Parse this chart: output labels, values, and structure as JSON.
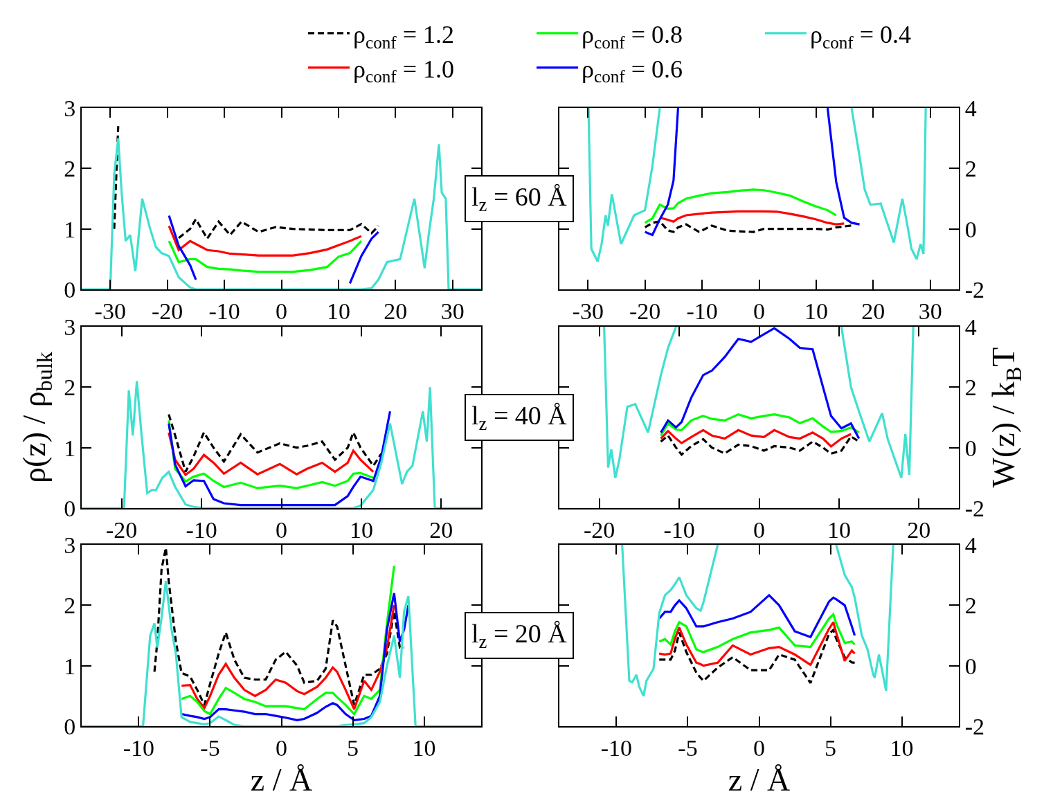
{
  "chart_data": [
    {
      "type": "line",
      "legend": "top",
      "annotations": [
        "l$_{z}$ = 60 Å"
      ],
      "xlim": [
        -35,
        35
      ],
      "xticks": [
        -30,
        -20,
        -10,
        0,
        10,
        20,
        30
      ],
      "ylim": [
        0,
        3
      ],
      "yticks": [
        0,
        1,
        2,
        3
      ],
      "x": [
        -35,
        -30,
        -29.3,
        -28.6,
        -28,
        -27.3,
        -26.5,
        -25.6,
        -24.4,
        -23,
        -22,
        -21,
        -19.7,
        -18,
        -16,
        -15,
        -13,
        -11,
        -9,
        -7,
        -4,
        -1,
        2,
        5,
        8,
        10,
        12,
        14,
        15.8,
        17,
        18.5,
        20.8,
        23.3,
        25.1,
        25.8,
        26.7,
        27.6,
        28.1,
        28.8,
        29.3,
        35
      ],
      "series": [
        {
          "name": "ρ$_{conf}$ = 1.2",
          "color": "#000000",
          "line_style": "dashed",
          "values": [
            null,
            null,
            1.0,
            2.7,
            null,
            null,
            null,
            null,
            null,
            null,
            null,
            null,
            null,
            0.85,
            1.0,
            1.16,
            0.84,
            1.12,
            0.9,
            1.12,
            0.95,
            1.03,
            1.0,
            0.99,
            0.98,
            0.98,
            0.98,
            1.08,
            0.93,
            1.05,
            null,
            null,
            null,
            null,
            null,
            null,
            null,
            null,
            null,
            null,
            null
          ]
        },
        {
          "name": "ρ$_{conf}$ = 1.0",
          "color": "#ff0000",
          "values": [
            null,
            null,
            null,
            null,
            null,
            null,
            null,
            null,
            null,
            null,
            null,
            null,
            1.05,
            0.65,
            0.8,
            0.75,
            0.65,
            0.63,
            0.59,
            0.58,
            0.56,
            0.56,
            0.56,
            0.6,
            0.66,
            0.73,
            0.8,
            0.88,
            null,
            null,
            null,
            null,
            null,
            null,
            null,
            null,
            null,
            null,
            null,
            null,
            null
          ]
        },
        {
          "name": "ρ$_{conf}$ = 0.8",
          "color": "#00ff00",
          "values": [
            null,
            null,
            null,
            null,
            null,
            null,
            null,
            null,
            null,
            null,
            null,
            null,
            0.8,
            0.45,
            0.5,
            0.5,
            0.37,
            0.34,
            0.33,
            0.31,
            0.29,
            0.29,
            0.29,
            0.32,
            0.37,
            0.54,
            0.6,
            0.8,
            null,
            null,
            null,
            null,
            null,
            null,
            null,
            null,
            null,
            null,
            null,
            null,
            null
          ]
        },
        {
          "name": "ρ$_{conf}$ = 0.6",
          "color": "#0000ff",
          "values": [
            null,
            null,
            null,
            null,
            null,
            null,
            null,
            null,
            null,
            null,
            null,
            null,
            1.22,
            0.72,
            0.4,
            0.16,
            null,
            null,
            null,
            null,
            null,
            null,
            null,
            null,
            null,
            null,
            0.1,
            0.55,
            0.84,
            0.95,
            null,
            null,
            null,
            null,
            null,
            null,
            null,
            null,
            null,
            null,
            null
          ]
        },
        {
          "name": "ρ$_{conf}$ = 0.4",
          "color": "#40e0d0",
          "values": [
            0,
            0,
            1.9,
            2.5,
            1.6,
            0.8,
            0.9,
            0.3,
            1.5,
            1.0,
            0.7,
            0.6,
            0.55,
            0.2,
            0.03,
            0,
            0,
            0,
            0,
            0,
            0,
            0,
            0,
            0,
            0,
            0,
            0,
            0,
            0.02,
            0.16,
            0.45,
            0.5,
            1.5,
            0.35,
            0.9,
            1.5,
            2.4,
            1.6,
            1.5,
            0,
            0
          ]
        }
      ]
    },
    {
      "type": "line",
      "xlim": [
        -35,
        35
      ],
      "xticks": [
        -30,
        -20,
        -10,
        0,
        10,
        20,
        30
      ],
      "ylim": [
        -2,
        4
      ],
      "yticks": [
        -2,
        0,
        2,
        4
      ],
      "x": [
        -29.9,
        -29.4,
        -28.3,
        -27.6,
        -26.9,
        -26.5,
        -25.8,
        -24.2,
        -21.9,
        -20,
        -18.7,
        -17.4,
        -16,
        -15,
        -14.2,
        -12.8,
        -10.5,
        -8.3,
        -5.5,
        -3.7,
        -1,
        0.8,
        3.1,
        5.4,
        7.6,
        9.9,
        12,
        13.5,
        14.9,
        16.2,
        17.6,
        18.5,
        19.5,
        21.3,
        23.6,
        25.1,
        26,
        26.7,
        27.6,
        28.3,
        28.8,
        29.2
      ],
      "series": [
        {
          "color": "#000000",
          "line_style": "dashed",
          "values": [
            null,
            null,
            null,
            null,
            null,
            null,
            null,
            null,
            null,
            0.05,
            0.2,
            0.25,
            -0.05,
            -0.1,
            0.05,
            0.15,
            -0.1,
            0.11,
            -0.06,
            -0.08,
            -0.1,
            0,
            0,
            0,
            0,
            0,
            -0.02,
            0.05,
            0.08,
            0.11,
            null,
            null,
            null,
            null,
            null,
            null,
            null,
            null,
            null,
            null,
            null,
            null
          ]
        },
        {
          "color": "#ff0000",
          "values": [
            null,
            null,
            null,
            null,
            null,
            null,
            null,
            null,
            null,
            null,
            null,
            0.37,
            0.3,
            0.24,
            0.35,
            0.45,
            0.5,
            0.54,
            0.56,
            0.58,
            0.58,
            0.58,
            0.57,
            0.5,
            0.42,
            0.32,
            0.2,
            0.15,
            0.18,
            null,
            null,
            null,
            null,
            null,
            null,
            null,
            null,
            null,
            null,
            null,
            null,
            null
          ]
        },
        {
          "color": "#00ff00",
          "values": [
            null,
            null,
            null,
            null,
            null,
            null,
            null,
            null,
            null,
            0.2,
            0.35,
            0.8,
            0.67,
            0.68,
            0.85,
            1.0,
            1.1,
            1.18,
            1.22,
            1.26,
            1.3,
            1.28,
            1.2,
            1.1,
            0.92,
            0.75,
            0.62,
            0.45,
            null,
            null,
            null,
            null,
            null,
            null,
            null,
            null,
            null,
            null,
            null,
            null,
            null,
            null
          ]
        },
        {
          "color": "#0000ff",
          "values": [
            null,
            null,
            null,
            null,
            null,
            null,
            null,
            null,
            null,
            -0.1,
            -0.2,
            0.32,
            0.8,
            1.6,
            4,
            null,
            null,
            null,
            null,
            null,
            null,
            null,
            null,
            null,
            null,
            null,
            4,
            1.56,
            0.37,
            0.2,
            0.15,
            null,
            null,
            null,
            null,
            null,
            null,
            null,
            null,
            null,
            null,
            null
          ]
        },
        {
          "color": "#40e0d0",
          "values": [
            4,
            -0.66,
            -1.08,
            -0.5,
            0.45,
            0.1,
            1.15,
            -0.5,
            0.45,
            0.62,
            2.08,
            4,
            null,
            null,
            null,
            null,
            null,
            null,
            null,
            null,
            null,
            null,
            null,
            null,
            null,
            null,
            null,
            null,
            null,
            4,
            2.4,
            1.3,
            0.8,
            0.84,
            -0.45,
            1.0,
            0.1,
            -0.66,
            -1.0,
            -0.5,
            -0.83,
            4
          ]
        }
      ]
    },
    {
      "type": "line",
      "ylabel": "ρ(z) / ρ$_{bulk}$",
      "annotations": [
        "l$_{z}$ = 40 Å"
      ],
      "xlim": [
        -25,
        25
      ],
      "xticks": [
        -20,
        -10,
        0,
        10,
        20
      ],
      "ylim": [
        0,
        3
      ],
      "yticks": [
        0,
        1,
        2,
        3
      ],
      "x": [
        -25,
        -19.7,
        -19.1,
        -18.6,
        -18.1,
        -17.5,
        -16.8,
        -16.2,
        -15.7,
        -14.9,
        -14.1,
        -13.3,
        -12,
        -11,
        -9.7,
        -8.5,
        -7.2,
        -5.1,
        -3,
        -0.2,
        1.9,
        3.2,
        5.1,
        6.7,
        8.3,
        9,
        9.9,
        11.5,
        12.5,
        13.6,
        15.1,
        15.7,
        16.4,
        17.7,
        18.2,
        18.6,
        19.2,
        25
      ],
      "series": [
        {
          "color": "#000000",
          "line_style": "dashed",
          "values": [
            null,
            null,
            null,
            null,
            null,
            null,
            null,
            null,
            null,
            null,
            1.55,
            1.2,
            0.6,
            0.85,
            1.25,
            1.0,
            0.77,
            1.22,
            0.92,
            1.07,
            1.0,
            1.03,
            1.1,
            0.8,
            1.0,
            1.25,
            1.0,
            0.7,
            0.9,
            null,
            null,
            null,
            null,
            null,
            null,
            null,
            null,
            null
          ]
        },
        {
          "color": "#ff0000",
          "values": [
            null,
            null,
            null,
            null,
            null,
            null,
            null,
            null,
            null,
            null,
            1.25,
            0.8,
            0.55,
            0.65,
            0.88,
            0.75,
            0.57,
            0.75,
            0.56,
            0.73,
            0.56,
            0.65,
            0.75,
            0.6,
            0.75,
            0.95,
            0.8,
            0.6,
            null,
            null,
            null,
            null,
            null,
            null,
            null,
            null,
            null,
            null
          ]
        },
        {
          "color": "#00ff00",
          "values": [
            null,
            null,
            null,
            null,
            null,
            null,
            null,
            null,
            null,
            null,
            1.45,
            0.65,
            0.44,
            0.52,
            0.57,
            0.45,
            0.35,
            0.42,
            0.33,
            0.37,
            0.33,
            0.37,
            0.43,
            0.37,
            0.45,
            0.57,
            0.58,
            0.5,
            null,
            null,
            null,
            null,
            null,
            null,
            null,
            null,
            null,
            null
          ]
        },
        {
          "color": "#0000ff",
          "values": [
            null,
            null,
            null,
            null,
            null,
            null,
            null,
            null,
            null,
            null,
            1.4,
            0.72,
            0.36,
            0.46,
            0.45,
            0.15,
            0.08,
            0.05,
            0.05,
            0.05,
            0.05,
            0.05,
            0.05,
            0.05,
            0.2,
            0.35,
            0.52,
            0.45,
            0.85,
            1.6,
            null,
            null,
            null,
            null,
            null,
            null,
            null,
            null
          ]
        },
        {
          "color": "#40e0d0",
          "values": [
            0,
            0,
            1.95,
            1.2,
            2.1,
            1.2,
            0.25,
            0.3,
            0.3,
            0.5,
            0.6,
            0.35,
            0.06,
            0.02,
            0,
            0,
            0,
            0,
            0,
            0,
            0,
            0,
            0,
            0,
            0,
            0,
            0.04,
            0.3,
            0.75,
            1.4,
            0.4,
            0.6,
            0.7,
            1.6,
            1.1,
            2.0,
            0,
            0
          ]
        }
      ]
    },
    {
      "type": "line",
      "ylabel": "W(z) / k$_{B}$T",
      "xlim": [
        -25,
        25
      ],
      "xticks": [
        -20,
        -10,
        0,
        10,
        20
      ],
      "ylim": [
        -2,
        4
      ],
      "yticks": [
        -2,
        0,
        2,
        4
      ],
      "x": [
        -19.4,
        -18.9,
        -18.5,
        -18,
        -17.5,
        -16.5,
        -15.5,
        -13.9,
        -12.3,
        -11.4,
        -10.4,
        -9.7,
        -8.5,
        -7,
        -5.9,
        -4.3,
        -2.6,
        -1,
        0.6,
        1.9,
        3.8,
        5.1,
        6.7,
        8,
        9,
        10.3,
        11.5,
        12.5,
        13.8,
        15.4,
        16.1,
        17,
        17.8,
        18.3,
        18.8,
        19.3
      ],
      "series": [
        {
          "color": "#000000",
          "line_style": "dashed",
          "values": [
            null,
            null,
            null,
            null,
            null,
            null,
            null,
            null,
            0.2,
            0.4,
            0.0,
            -0.23,
            0.05,
            0.28,
            0.0,
            -0.19,
            0.1,
            0.05,
            -0.1,
            0.05,
            0.0,
            -0.1,
            0.2,
            0.0,
            -0.2,
            -0.1,
            0.37,
            0.2,
            null,
            null,
            null,
            null,
            null,
            null,
            null,
            null
          ]
        },
        {
          "color": "#ff0000",
          "values": [
            null,
            null,
            null,
            null,
            null,
            null,
            null,
            null,
            0.3,
            0.55,
            0.3,
            0.15,
            0.35,
            0.58,
            0.4,
            0.3,
            0.58,
            0.4,
            0.35,
            0.58,
            0.35,
            0.3,
            0.5,
            0.3,
            0.04,
            0.3,
            0.45,
            null,
            null,
            null,
            null,
            null,
            null,
            null,
            null,
            null
          ]
        },
        {
          "color": "#00ff00",
          "values": [
            null,
            null,
            null,
            null,
            null,
            null,
            null,
            null,
            0.4,
            0.8,
            0.6,
            0.58,
            0.9,
            1.05,
            0.95,
            0.9,
            1.1,
            0.97,
            1.05,
            1.1,
            1.0,
            0.81,
            0.97,
            0.7,
            0.52,
            0.55,
            0.67,
            0.5,
            null,
            null,
            null,
            null,
            null,
            null,
            null,
            null
          ]
        },
        {
          "color": "#0000ff",
          "values": [
            null,
            null,
            null,
            null,
            null,
            null,
            null,
            null,
            0.5,
            0.9,
            0.67,
            0.85,
            1.65,
            2.4,
            2.55,
            3.0,
            3.6,
            3.5,
            3.75,
            3.95,
            3.6,
            3.3,
            3.25,
            2.0,
            1.05,
            0.64,
            0.8,
            0.3,
            null,
            null,
            null,
            null,
            null,
            null,
            null,
            null
          ]
        },
        {
          "color": "#40e0d0",
          "values": [
            4,
            -0.66,
            -0.06,
            -1.0,
            -0.4,
            1.35,
            1.44,
            0.5,
            2.4,
            3.3,
            4,
            null,
            null,
            null,
            null,
            null,
            null,
            null,
            null,
            null,
            null,
            null,
            null,
            null,
            null,
            4,
            2.0,
            1.2,
            0.2,
            1.14,
            0.28,
            -0.4,
            -1.0,
            0.45,
            -0.9,
            4
          ]
        }
      ]
    },
    {
      "type": "line",
      "xlabel": "z / Å",
      "annotations": [
        "l$_{z}$ = 20 Å"
      ],
      "xlim": [
        -14,
        14
      ],
      "xticks": [
        -10,
        -5,
        0,
        5,
        10
      ],
      "ylim": [
        0,
        3
      ],
      "yticks": [
        0,
        1,
        2,
        3
      ],
      "x": [
        -14,
        -9.7,
        -9.2,
        -8.9,
        -8.7,
        -8.4,
        -8.1,
        -7.9,
        -7.7,
        -7.4,
        -7,
        -6.4,
        -5.9,
        -5.4,
        -5,
        -4.4,
        -3.9,
        -3.3,
        -2.6,
        -1.85,
        -1.1,
        -0.4,
        0.3,
        1.1,
        1.6,
        2.5,
        3.1,
        3.6,
        3.9,
        4.5,
        5.1,
        5.8,
        6.3,
        6.9,
        7.4,
        7.9,
        8.3,
        8.6,
        8.9,
        9.4,
        14
      ],
      "series": [
        {
          "color": "#000000",
          "line_style": "dashed",
          "values": [
            null,
            null,
            null,
            0.9,
            1.4,
            2.6,
            2.95,
            2.4,
            2.0,
            1.4,
            0.88,
            0.82,
            0.6,
            0.35,
            0.7,
            1.2,
            1.55,
            1.1,
            0.8,
            0.77,
            0.77,
            1.1,
            1.23,
            1.0,
            0.72,
            0.75,
            0.95,
            1.75,
            1.65,
            1.0,
            0.35,
            0.85,
            0.85,
            0.95,
            1.2,
            1.9,
            1.3,
            1.3,
            null,
            null,
            null
          ]
        },
        {
          "color": "#ff0000",
          "values": [
            null,
            null,
            null,
            null,
            null,
            null,
            null,
            null,
            null,
            null,
            0.67,
            0.68,
            0.45,
            0.3,
            0.5,
            0.85,
            1.03,
            0.8,
            0.6,
            0.5,
            0.6,
            0.77,
            0.72,
            0.58,
            0.53,
            0.65,
            0.8,
            0.97,
            0.9,
            0.6,
            0.28,
            0.75,
            0.6,
            0.9,
            1.3,
            2.0,
            null,
            null,
            null,
            null,
            null
          ]
        },
        {
          "color": "#00ff00",
          "values": [
            null,
            null,
            null,
            null,
            null,
            null,
            null,
            null,
            null,
            null,
            0.45,
            0.5,
            0.4,
            0.25,
            0.2,
            0.45,
            0.63,
            0.55,
            0.45,
            0.4,
            0.33,
            0.33,
            0.33,
            0.3,
            0.28,
            0.45,
            0.55,
            0.55,
            0.48,
            0.35,
            0.2,
            0.5,
            0.45,
            0.6,
            1.7,
            2.65,
            null,
            null,
            null,
            null,
            null
          ]
        },
        {
          "color": "#0000ff",
          "values": [
            null,
            null,
            null,
            null,
            null,
            null,
            null,
            null,
            null,
            null,
            0.2,
            0.17,
            0.15,
            0.12,
            0.15,
            0.28,
            0.28,
            0.26,
            0.24,
            0.2,
            0.2,
            0.17,
            0.14,
            0.1,
            0.12,
            0.22,
            0.32,
            0.38,
            0.35,
            0.2,
            0.1,
            0.12,
            0.17,
            0.5,
            1.6,
            2.2,
            1.4,
            1.6,
            2.0,
            null,
            null
          ]
        },
        {
          "color": "#40e0d0",
          "values": [
            0,
            0,
            1.5,
            1.7,
            1.3,
            1.8,
            2.4,
            2.0,
            1.6,
            1.2,
            0.15,
            0.07,
            0.05,
            0.03,
            0.05,
            0.16,
            0.1,
            0.02,
            0,
            0,
            0,
            0,
            0,
            0,
            0,
            0,
            0,
            0,
            0,
            0.02,
            0.03,
            0.05,
            0.15,
            0.4,
            1.0,
            1.5,
            0.8,
            1.9,
            2.15,
            0,
            0
          ]
        }
      ]
    },
    {
      "type": "line",
      "xlabel": "z / Å",
      "xlim": [
        -14,
        14
      ],
      "xticks": [
        -10,
        -5,
        0,
        5,
        10
      ],
      "ylim": [
        -2,
        4
      ],
      "yticks": [
        -2,
        0,
        2,
        4
      ],
      "x": [
        -9.6,
        -9.1,
        -8.9,
        -8.6,
        -8.4,
        -8.1,
        -7.9,
        -7.4,
        -7,
        -6.6,
        -6.2,
        -5.9,
        -5.6,
        -5.1,
        -4.4,
        -4.1,
        -3.9,
        -2.9,
        -1.85,
        -0.6,
        0.7,
        1.4,
        2.5,
        3.6,
        4.9,
        5.2,
        5.4,
        6,
        6.5,
        6.7,
        7.2,
        7.6,
        8,
        8.1,
        8.4,
        8.9,
        9.4
      ],
      "series": [
        {
          "color": "#000000",
          "line_style": "dashed",
          "values": [
            null,
            null,
            null,
            null,
            null,
            null,
            null,
            null,
            0.2,
            0.2,
            0.2,
            0.5,
            1.1,
            0.45,
            -0.23,
            -0.4,
            -0.5,
            -0.06,
            0.28,
            -0.15,
            -0.15,
            0.37,
            0.2,
            -0.57,
            1.05,
            1.18,
            0.9,
            0.28,
            0.11,
            0.1,
            null,
            null,
            null,
            null,
            null,
            null,
            null
          ]
        },
        {
          "color": "#ff0000",
          "values": [
            null,
            null,
            null,
            null,
            null,
            null,
            null,
            null,
            0.4,
            0.37,
            0.4,
            0.9,
            1.26,
            0.7,
            0.1,
            0.05,
            0.0,
            0.1,
            0.67,
            0.37,
            0.58,
            0.62,
            0.37,
            0.03,
            1.22,
            1.44,
            1.1,
            0.16,
            0.5,
            0.4,
            null,
            null,
            null,
            null,
            null,
            null,
            null
          ]
        },
        {
          "color": "#00ff00",
          "values": [
            null,
            null,
            null,
            null,
            null,
            null,
            null,
            null,
            0.8,
            0.88,
            0.7,
            1.14,
            1.44,
            1.3,
            0.54,
            0.48,
            0.45,
            0.62,
            0.88,
            1.1,
            1.18,
            1.26,
            0.67,
            0.62,
            1.56,
            1.7,
            1.4,
            0.75,
            0.8,
            0.7,
            null,
            null,
            null,
            null,
            null,
            null,
            null
          ]
        },
        {
          "color": "#0000ff",
          "values": [
            null,
            null,
            null,
            null,
            null,
            null,
            null,
            null,
            1.56,
            1.78,
            1.78,
            2.0,
            2.16,
            1.9,
            1.3,
            1.3,
            1.3,
            1.44,
            1.56,
            1.78,
            2.33,
            2.0,
            1.14,
            0.95,
            2.12,
            2.25,
            2.2,
            2.0,
            1.3,
            1.0,
            null,
            null,
            null,
            null,
            null,
            null,
            null
          ]
        },
        {
          "color": "#40e0d0",
          "values": [
            4,
            -0.5,
            -0.55,
            -0.3,
            -0.7,
            -1.0,
            -0.5,
            -0.1,
            1.74,
            2.33,
            2.5,
            2.7,
            2.93,
            2.33,
            1.9,
            1.82,
            2.1,
            4,
            null,
            null,
            null,
            null,
            null,
            null,
            null,
            null,
            4,
            3.0,
            2.6,
            2.25,
            1.0,
            0.54,
            -0.3,
            -0.4,
            0.37,
            -0.83,
            4
          ]
        }
      ]
    }
  ]
}
